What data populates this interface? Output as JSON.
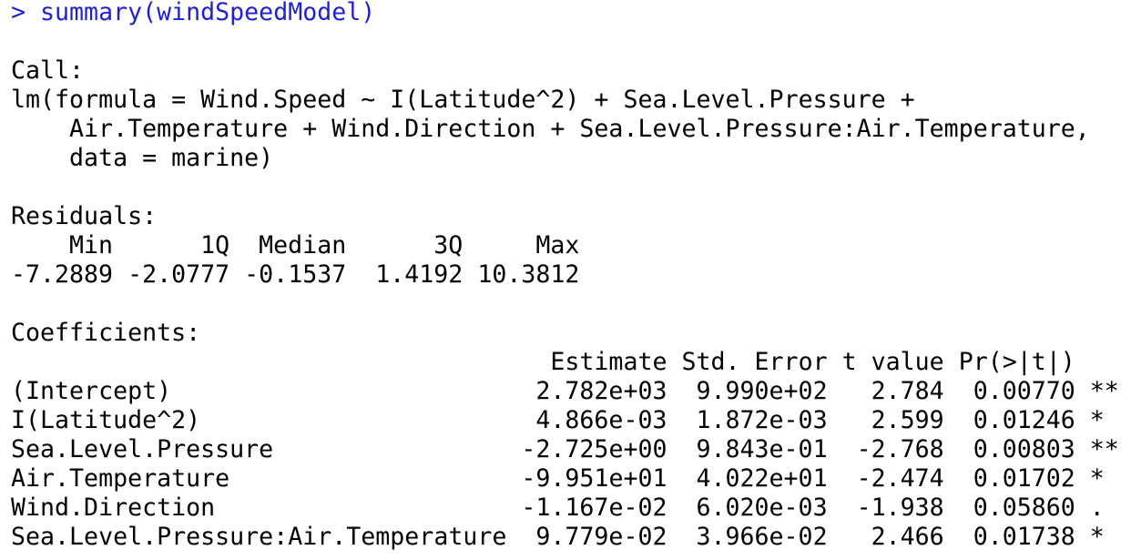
{
  "command": "> summary(windSpeedModel)",
  "call": {
    "label": "Call:",
    "lines": [
      "lm(formula = Wind.Speed ~ I(Latitude^2) + Sea.Level.Pressure + ",
      "Air.Temperature + Wind.Direction + Sea.Level.Pressure:Air.Temperature, ",
      "data = marine)"
    ]
  },
  "residuals": {
    "label": "Residuals:",
    "headers": [
      "Min",
      "1Q",
      "Median",
      "3Q",
      "Max"
    ],
    "values": [
      "-7.2889",
      "-2.0777",
      "-0.1537",
      "1.4192",
      "10.3812"
    ]
  },
  "coefficients": {
    "label": "Coefficients:",
    "headers": [
      "Estimate",
      "Std. Error",
      "t value",
      "Pr(>|t|)"
    ],
    "rows": [
      {
        "name": "(Intercept)",
        "cells": [
          "2.782e+03",
          "9.990e+02",
          "2.784",
          "0.00770"
        ],
        "signif": "**"
      },
      {
        "name": "I(Latitude^2)",
        "cells": [
          "4.866e-03",
          "1.872e-03",
          "2.599",
          "0.01246"
        ],
        "signif": "*"
      },
      {
        "name": "Sea.Level.Pressure",
        "cells": [
          "-2.725e+00",
          "9.843e-01",
          "-2.768",
          "0.00803"
        ],
        "signif": "**"
      },
      {
        "name": "Air.Temperature",
        "cells": [
          "-9.951e+01",
          "4.022e+01",
          "-2.474",
          "0.01702"
        ],
        "signif": "*"
      },
      {
        "name": "Wind.Direction",
        "cells": [
          "-1.167e-02",
          "6.020e-03",
          "-1.938",
          "0.05860"
        ],
        "signif": "."
      },
      {
        "name": "Sea.Level.Pressure:Air.Temperature",
        "cells": [
          "9.779e-02",
          "3.966e-02",
          "2.466",
          "0.01738"
        ],
        "signif": "*"
      }
    ]
  }
}
